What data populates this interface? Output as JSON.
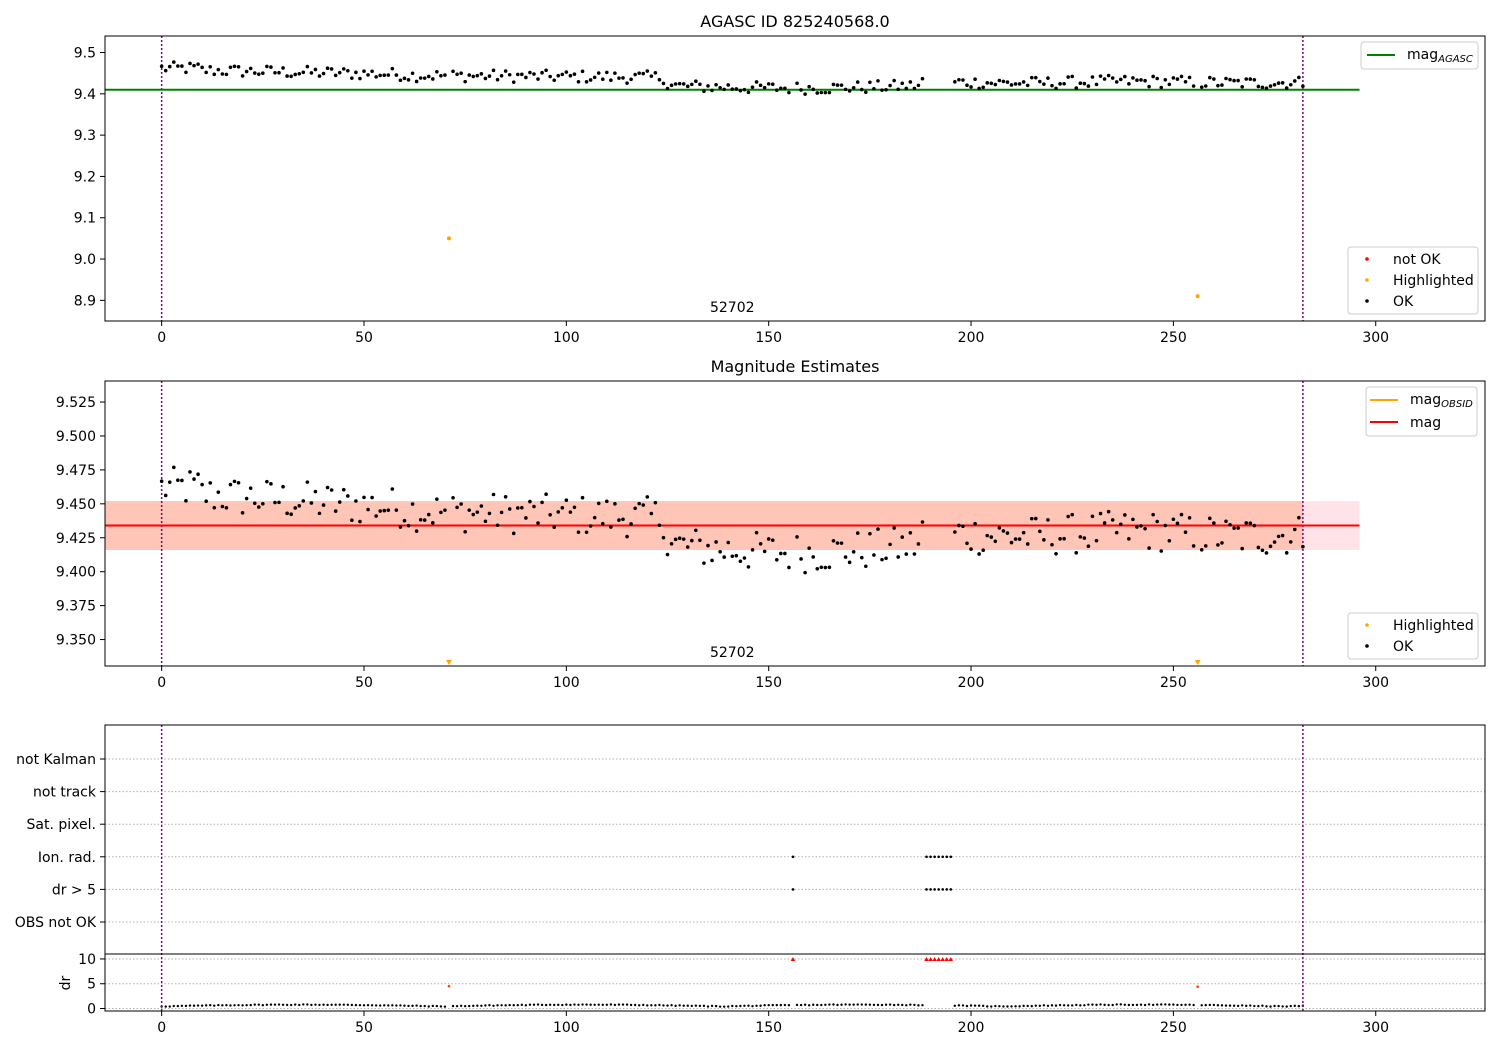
{
  "chart_data": [
    {
      "type": "scatter",
      "title": "AGASC ID 825240568.0",
      "xlim": [
        -14,
        327
      ],
      "ylim": [
        8.85,
        9.54
      ],
      "x_ticks": [
        0,
        50,
        100,
        150,
        200,
        250,
        300
      ],
      "y_ticks": [
        8.9,
        9.0,
        9.1,
        9.2,
        9.3,
        9.4,
        9.5
      ],
      "y_tick_labels": [
        "8.9",
        "9.0",
        "9.1",
        "9.2",
        "9.3",
        "9.4",
        "9.5"
      ],
      "annotation": "52702",
      "vlines": [
        0,
        282
      ],
      "vline_color": "#800080",
      "hline": {
        "y": 9.41,
        "x_range": [
          -14,
          296
        ],
        "color": "#008000",
        "label": "mag",
        "label_sub": "AGASC"
      },
      "legend_points": [
        {
          "label": "not OK",
          "color": "#ff0000"
        },
        {
          "label": "Highlighted",
          "color": "#ffa500"
        },
        {
          "label": "OK",
          "color": "#000000"
        }
      ],
      "highlighted": [
        {
          "x": 71,
          "y": 9.05
        },
        {
          "x": 256,
          "y": 8.91
        }
      ]
    },
    {
      "type": "scatter",
      "title": "Magnitude Estimates",
      "xlim": [
        -14,
        327
      ],
      "ylim": [
        9.3305,
        9.5405
      ],
      "x_ticks": [
        0,
        50,
        100,
        150,
        200,
        250,
        300
      ],
      "y_ticks": [
        9.35,
        9.375,
        9.4,
        9.425,
        9.45,
        9.475,
        9.5,
        9.525
      ],
      "y_tick_labels": [
        "9.350",
        "9.375",
        "9.400",
        "9.425",
        "9.450",
        "9.475",
        "9.500",
        "9.525"
      ],
      "annotation": "52702",
      "vlines": [
        0,
        282
      ],
      "vline_color": "#800080",
      "band_outer": {
        "y": [
          9.416,
          9.452
        ],
        "color": "#ffc0cb"
      },
      "band_inner": {
        "y": [
          9.416,
          9.452
        ],
        "x_range": [
          -14,
          282
        ],
        "color": "#ffa07a"
      },
      "lines": [
        {
          "y": 9.434,
          "color": "#ffa500",
          "label": "mag",
          "label_sub": "OBSID",
          "x_range": [
            0,
            282
          ]
        },
        {
          "y": 9.434,
          "color": "#ff0000",
          "label": "mag",
          "label_sub": "",
          "x_range": [
            -14,
            296
          ]
        }
      ],
      "legend_points": [
        {
          "label": "Highlighted",
          "color": "#ffa500"
        },
        {
          "label": "OK",
          "color": "#000000"
        }
      ],
      "highlighted_offscale": [
        71,
        256
      ]
    },
    {
      "type": "scatter",
      "title": "",
      "flag_rows": [
        "not Kalman",
        "not track",
        "Sat. pixel.",
        "Ion. rad.",
        "dr > 5",
        "OBS not OK"
      ],
      "flag_points": [
        {
          "row": "Ion. rad.",
          "x": [
            156,
            189,
            190,
            191,
            192,
            193,
            194,
            195
          ]
        },
        {
          "row": "dr > 5",
          "x": [
            156,
            189,
            190,
            191,
            192,
            193,
            194,
            195
          ]
        }
      ],
      "ylabel": "dr",
      "dr_ylim": [
        -0.5,
        11
      ],
      "dr_ticks": [
        0,
        5,
        10
      ],
      "dr_tick_labels": [
        "0",
        "5",
        "10"
      ],
      "dr_clipped": [
        156,
        189,
        190,
        191,
        192,
        193,
        194,
        195
      ],
      "dr_highlighted": [
        {
          "x": 71,
          "y": 4.5
        },
        {
          "x": 256,
          "y": 4.4
        }
      ],
      "vlines": [
        0,
        282
      ],
      "vline_color": "#800080"
    }
  ]
}
